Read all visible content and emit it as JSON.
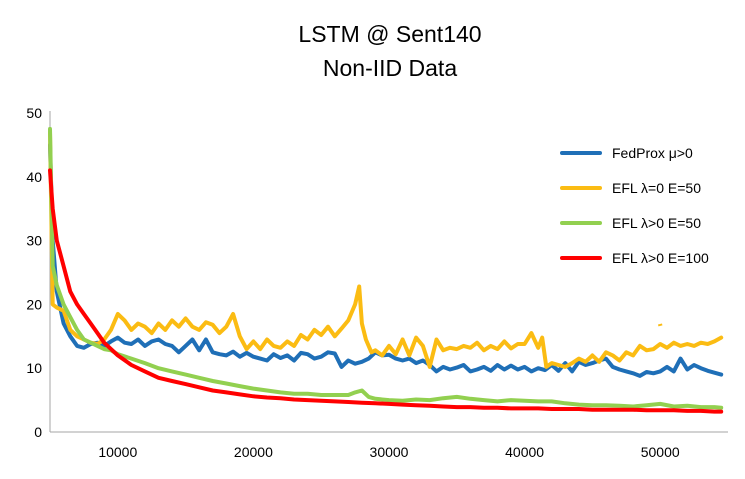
{
  "chart_data": {
    "type": "line",
    "title": "LSTM @ Sent140",
    "subtitle": "Non-IID Data",
    "xlabel": "",
    "ylabel": "",
    "xlim": [
      5000,
      55000
    ],
    "ylim": [
      0,
      50
    ],
    "x_ticks": [
      10000,
      20000,
      30000,
      40000,
      50000
    ],
    "y_ticks": [
      0,
      10,
      20,
      30,
      40,
      50
    ],
    "grid": false,
    "legend_position": "right",
    "series": [
      {
        "name": "FedProx μ>0",
        "color": "#1f6fb7",
        "x": [
          5000,
          5200,
          5500,
          6000,
          6500,
          7000,
          7500,
          8000,
          8500,
          9000,
          9500,
          10000,
          10500,
          11000,
          11500,
          12000,
          12500,
          13000,
          13500,
          14000,
          14500,
          15000,
          15500,
          16000,
          16500,
          17000,
          17500,
          18000,
          18500,
          19000,
          19500,
          20000,
          20500,
          21000,
          21500,
          22000,
          22500,
          23000,
          23500,
          24000,
          24500,
          25000,
          25500,
          26000,
          26500,
          27000,
          27500,
          28000,
          28500,
          29000,
          29500,
          30000,
          30500,
          31000,
          31500,
          32000,
          32500,
          33000,
          33500,
          34000,
          34500,
          35000,
          35500,
          36000,
          36500,
          37000,
          37500,
          38000,
          38500,
          39000,
          39500,
          40000,
          40500,
          41000,
          41500,
          42000,
          42500,
          43000,
          43500,
          44000,
          44500,
          45000,
          45500,
          46000,
          46500,
          47000,
          47500,
          48000,
          48500,
          49000,
          49500,
          50000,
          50500,
          51000,
          51500,
          52000,
          52500,
          53000,
          53500,
          54000,
          54500
        ],
        "values": [
          45,
          30,
          22,
          17,
          15,
          13.5,
          13.2,
          13.8,
          14,
          13.5,
          14.2,
          14.8,
          14,
          13.8,
          14.5,
          13.5,
          14.2,
          14.5,
          13.8,
          13.5,
          12.5,
          13.5,
          14.5,
          12.8,
          14.5,
          12.5,
          12.2,
          12,
          12.6,
          11.8,
          12.4,
          11.8,
          11.5,
          11.2,
          12.2,
          11.6,
          12,
          11.2,
          12.4,
          12.2,
          11.5,
          11.8,
          12.5,
          12.3,
          10.2,
          11.2,
          10.7,
          11,
          11.5,
          12.5,
          12,
          12.1,
          11.5,
          11.2,
          11.5,
          10.8,
          11.2,
          10.5,
          9.5,
          10.2,
          9.8,
          10.1,
          10.5,
          9.5,
          9.8,
          10.2,
          9.6,
          10.5,
          9.8,
          10.4,
          9.8,
          10.2,
          9.5,
          10,
          9.7,
          10.5,
          9.6,
          10.8,
          9.5,
          11,
          10.5,
          10.8,
          11.2,
          11.5,
          10.2,
          9.8,
          9.5,
          9.2,
          8.8,
          9.4,
          9.2,
          9.5,
          10.2,
          9.5,
          11.5,
          9.8,
          10.5,
          10,
          9.6,
          9.3,
          9
        ]
      },
      {
        "name": "EFL λ=0 E=50",
        "color": "#fbbc13",
        "x": [
          5000,
          5200,
          5500,
          6000,
          6500,
          7000,
          7500,
          8000,
          8500,
          9000,
          9500,
          10000,
          10500,
          11000,
          11500,
          12000,
          12500,
          13000,
          13500,
          14000,
          14500,
          15000,
          15500,
          16000,
          16500,
          17000,
          17500,
          18000,
          18500,
          19000,
          19500,
          20000,
          20500,
          21000,
          21500,
          22000,
          22500,
          23000,
          23500,
          24000,
          24500,
          25000,
          25500,
          26000,
          26500,
          27000,
          27500,
          27800,
          28000,
          28300,
          28700,
          29000,
          29500,
          30000,
          30500,
          31000,
          31500,
          32000,
          32500,
          33000,
          33500,
          34000,
          34500,
          35000,
          35500,
          36000,
          36500,
          37000,
          37500,
          38000,
          38500,
          39000,
          39500,
          40000,
          40500,
          41000,
          41300,
          41600,
          42000,
          42500,
          43000,
          43500,
          44000,
          44500,
          45000,
          45500,
          46000,
          46500,
          47000,
          47500,
          48000,
          48500,
          49000,
          49500,
          50000,
          50500,
          51000,
          51500,
          52000,
          52500,
          53000,
          53500,
          54000,
          54500
        ],
        "values": [
          47,
          20,
          19.5,
          19,
          16,
          15,
          14.5,
          14,
          13.8,
          14.5,
          16,
          18.5,
          17.5,
          16,
          17,
          16.5,
          15.5,
          17,
          16,
          17.5,
          16.5,
          17.8,
          16.5,
          16,
          17.2,
          16.8,
          15.5,
          16.5,
          18.5,
          15,
          13,
          14.2,
          13,
          14.5,
          13.5,
          13.2,
          14.2,
          13.5,
          15.2,
          14.5,
          16,
          15.2,
          16.5,
          15,
          16.2,
          17.5,
          20,
          22.8,
          17,
          14.5,
          12.5,
          12.8,
          12,
          13.5,
          12.2,
          14.5,
          12,
          14.8,
          13.5,
          10.2,
          14.5,
          12.8,
          13.2,
          13,
          13.5,
          13.2,
          14,
          12.8,
          13.5,
          13,
          14.2,
          13.1,
          13.8,
          13.8,
          15.5,
          13.2,
          14.8,
          10.2,
          10.8,
          10.5,
          10.2,
          10.8,
          11.5,
          11,
          12,
          11,
          12.5,
          12,
          11.2,
          12.5,
          12,
          13.5,
          12.8,
          13,
          13.8,
          13.2,
          14,
          13.5,
          13.8,
          13.5,
          14,
          13.8,
          14.2,
          14.8
        ]
      },
      {
        "name": "EFL λ>0 E=50",
        "color": "#92d050",
        "x": [
          5000,
          5200,
          5500,
          6000,
          6500,
          7000,
          7500,
          8000,
          8500,
          9000,
          9500,
          10000,
          11000,
          12000,
          13000,
          14000,
          15000,
          16000,
          17000,
          18000,
          19000,
          20000,
          21000,
          22000,
          23000,
          24000,
          25000,
          26000,
          27000,
          27500,
          28000,
          28500,
          29000,
          30000,
          31000,
          32000,
          33000,
          34000,
          35000,
          36000,
          37000,
          38000,
          39000,
          40000,
          41000,
          42000,
          43000,
          44000,
          45000,
          46000,
          47000,
          48000,
          49000,
          50000,
          51000,
          52000,
          53000,
          54000,
          54500
        ],
        "values": [
          47.5,
          26,
          23,
          20,
          18,
          16,
          14.5,
          14,
          13.5,
          13,
          12.8,
          12.2,
          11.5,
          10.8,
          10,
          9.5,
          9,
          8.5,
          8,
          7.6,
          7.2,
          6.8,
          6.5,
          6.2,
          6,
          6,
          5.8,
          5.8,
          5.8,
          6.2,
          6.5,
          5.5,
          5.2,
          5,
          4.9,
          5.1,
          5,
          5.3,
          5.5,
          5.2,
          5,
          4.8,
          5,
          4.9,
          4.8,
          4.8,
          4.5,
          4.3,
          4.2,
          4.2,
          4.1,
          4,
          4.2,
          4.4,
          4,
          4.1,
          3.9,
          3.9,
          3.8
        ]
      },
      {
        "name": "EFL λ>0 E=100",
        "color": "#ff0000",
        "x": [
          5000,
          5200,
          5500,
          6000,
          6500,
          7000,
          7500,
          8000,
          8500,
          9000,
          9500,
          10000,
          11000,
          12000,
          13000,
          14000,
          15000,
          16000,
          17000,
          18000,
          19000,
          20000,
          21000,
          22000,
          23000,
          24000,
          25000,
          26000,
          27000,
          28000,
          29000,
          30000,
          31000,
          32000,
          33000,
          34000,
          35000,
          36000,
          37000,
          38000,
          39000,
          40000,
          41000,
          42000,
          43000,
          44000,
          45000,
          46000,
          47000,
          48000,
          49000,
          50000,
          51000,
          52000,
          53000,
          54000,
          54500
        ],
        "values": [
          41,
          35,
          30,
          26,
          22,
          20,
          18.5,
          17,
          15.5,
          14,
          13,
          12,
          10.5,
          9.5,
          8.5,
          8,
          7.5,
          7,
          6.5,
          6.2,
          5.9,
          5.6,
          5.4,
          5.3,
          5.1,
          5,
          4.9,
          4.8,
          4.7,
          4.6,
          4.5,
          4.4,
          4.3,
          4.2,
          4.1,
          4,
          3.9,
          3.9,
          3.8,
          3.8,
          3.7,
          3.7,
          3.7,
          3.6,
          3.6,
          3.6,
          3.5,
          3.5,
          3.5,
          3.5,
          3.4,
          3.4,
          3.4,
          3.3,
          3.3,
          3.2,
          3.2
        ]
      }
    ],
    "annotations": [
      {
        "x": 50000,
        "y": 16.7,
        "color": "#fbbc13"
      }
    ]
  }
}
